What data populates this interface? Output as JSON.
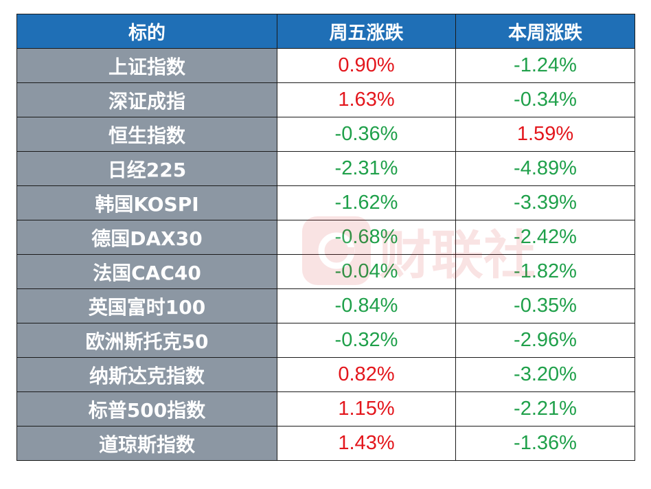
{
  "table": {
    "headers": [
      "标的",
      "周五涨跌",
      "本周涨跌"
    ],
    "rows": [
      {
        "name": "上证指数",
        "friday": "0.90%",
        "week": "-1.24%"
      },
      {
        "name": "深证成指",
        "friday": "1.63%",
        "week": "-0.34%"
      },
      {
        "name": "恒生指数",
        "friday": "-0.36%",
        "week": "1.59%"
      },
      {
        "name": "日经225",
        "friday": "-2.31%",
        "week": "-4.89%"
      },
      {
        "name": "韩国KOSPI",
        "friday": "-1.62%",
        "week": "-3.39%"
      },
      {
        "name": "德国DAX30",
        "friday": "-0.68%",
        "week": "-2.42%"
      },
      {
        "name": "法国CAC40",
        "friday": "-0.04%",
        "week": "-1.82%"
      },
      {
        "name": "英国富时100",
        "friday": "-0.84%",
        "week": "-0.35%"
      },
      {
        "name": "欧洲斯托克50",
        "friday": "-0.32%",
        "week": "-2.96%"
      },
      {
        "name": "纳斯达克指数",
        "friday": "0.82%",
        "week": "-3.20%"
      },
      {
        "name": "标普500指数",
        "friday": "1.15%",
        "week": "-2.21%"
      },
      {
        "name": "道琼斯指数",
        "friday": "1.43%",
        "week": "-1.36%"
      }
    ]
  },
  "watermark": {
    "text": "财联社",
    "icon": "cls-logo-icon"
  },
  "colors": {
    "header_bg": "#1f6fb6",
    "name_bg": "#8c97a3",
    "up": "#e3161c",
    "down": "#1fa04a"
  }
}
